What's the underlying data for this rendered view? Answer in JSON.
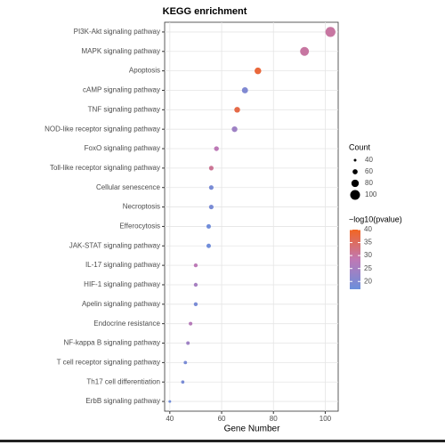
{
  "chart_data": {
    "type": "dotplot",
    "title": "KEGG enrichment",
    "x_label": "Gene Number",
    "categories": [
      "PI3K-Akt signaling pathway",
      "MAPK signaling pathway",
      "Apoptosis",
      "cAMP signaling pathway",
      "TNF signaling pathway",
      "NOD-like receptor signaling pathway",
      "FoxO signaling pathway",
      "Toll-like receptor signaling pathway",
      "Cellular senescence",
      "Necroptosis",
      "Efferocytosis",
      "JAK-STAT signaling pathway",
      "IL-17 signaling pathway",
      "HIF-1 signaling pathway",
      "Apelin signaling pathway",
      "Endocrine resistance",
      "NF-kappa B signaling pathway",
      "T cell receptor signaling pathway",
      "Th17 cell differentiation",
      "ErbB signaling pathway"
    ],
    "values": [
      102,
      92,
      74,
      69,
      66,
      65,
      58,
      56,
      56,
      56,
      55,
      55,
      50,
      50,
      50,
      48,
      47,
      46,
      45,
      40
    ],
    "color_values": [
      30,
      30,
      38,
      20,
      37,
      24,
      28,
      31,
      19,
      19,
      18,
      18,
      28,
      25,
      19,
      27,
      24,
      19,
      19,
      18
    ],
    "xlim": [
      38,
      105
    ],
    "xticks": [
      40,
      60,
      80,
      100
    ],
    "grid": true,
    "size_legend": {
      "title": "Count",
      "values": [
        40,
        60,
        80,
        100
      ]
    },
    "color_legend": {
      "title": "−log10(pvalue)",
      "lim": [
        17,
        40
      ],
      "ticks": [
        20,
        25,
        30,
        35,
        40
      ],
      "colors": [
        "#6a8fdc",
        "#c078b4",
        "#f26522"
      ]
    }
  }
}
